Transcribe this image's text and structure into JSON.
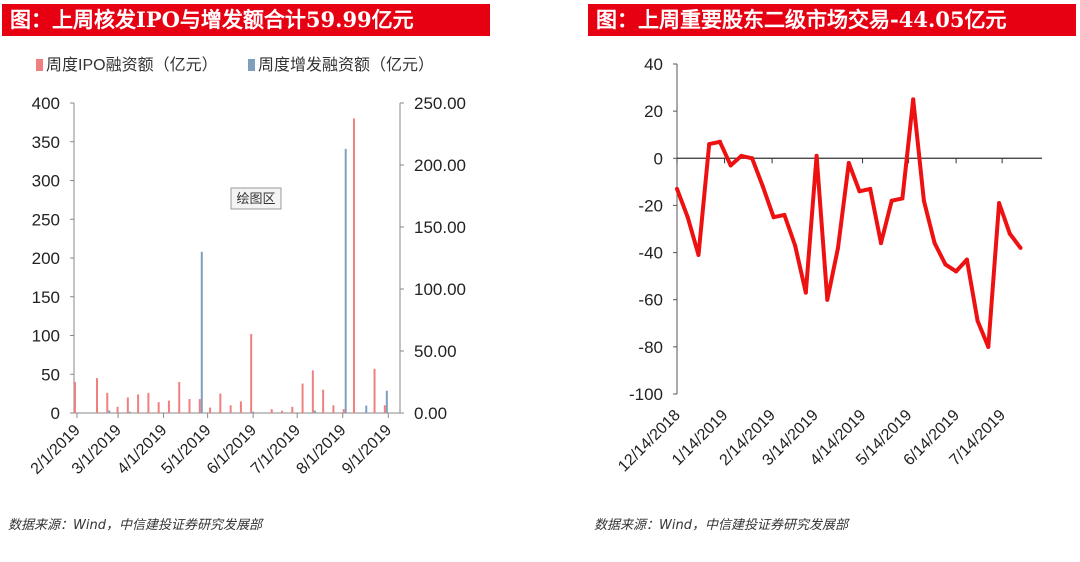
{
  "left_title": "图：上周核发IPO与增发额合计59.99亿元",
  "right_title": "图：上周重要股东二级市场交易-44.05亿元",
  "left_source": "数据来源：Wind，中信建投证券研究发展部",
  "right_source": "数据来源：Wind，中信建投证券研究发展部",
  "plot_area_label": "绘图区",
  "colors": {
    "title_bg": "#e60012",
    "ipo": "#f08080",
    "seo": "#7f9fbf",
    "line": "#ee1111"
  },
  "chart_data": [
    {
      "type": "bar",
      "title": "图：上周核发IPO与增发额合计59.99亿元",
      "legend": [
        "周度IPO融资额（亿元）",
        "周度增发融资额（亿元）"
      ],
      "legend_position": "top",
      "x_tick_labels": [
        "2/1/2019",
        "3/1/2019",
        "4/1/2019",
        "5/1/2019",
        "6/1/2019",
        "7/1/2019",
        "8/1/2019",
        "9/1/2019"
      ],
      "y_left": {
        "ticks": [
          "0",
          "50",
          "100",
          "150",
          "200",
          "250",
          "300",
          "350",
          "400"
        ],
        "lim": [
          0,
          400
        ]
      },
      "y_right": {
        "ticks": [
          "0.00",
          "50.00",
          "100.00",
          "150.00",
          "200.00",
          "250.00"
        ],
        "lim": [
          0,
          250
        ]
      },
      "x_range": [
        "2019-01-30",
        "2019-09-09"
      ],
      "series": [
        {
          "name": "周度IPO融资额（亿元）",
          "axis": "left",
          "points": [
            [
              "2019-01-31",
              40
            ],
            [
              "2019-02-15",
              45
            ],
            [
              "2019-02-22",
              26
            ],
            [
              "2019-03-01",
              8
            ],
            [
              "2019-03-08",
              20
            ],
            [
              "2019-03-15",
              24
            ],
            [
              "2019-03-22",
              26
            ],
            [
              "2019-03-29",
              14
            ],
            [
              "2019-04-05",
              16
            ],
            [
              "2019-04-12",
              40
            ],
            [
              "2019-04-19",
              18
            ],
            [
              "2019-04-26",
              18
            ],
            [
              "2019-05-03",
              7
            ],
            [
              "2019-05-10",
              25
            ],
            [
              "2019-05-17",
              10
            ],
            [
              "2019-05-24",
              15
            ],
            [
              "2019-05-31",
              102
            ],
            [
              "2019-06-14",
              5
            ],
            [
              "2019-06-21",
              3
            ],
            [
              "2019-06-28",
              8
            ],
            [
              "2019-07-05",
              38
            ],
            [
              "2019-07-12",
              55
            ],
            [
              "2019-07-19",
              30
            ],
            [
              "2019-07-26",
              10
            ],
            [
              "2019-08-02",
              5
            ],
            [
              "2019-08-09",
              380
            ],
            [
              "2019-08-23",
              57
            ],
            [
              "2019-08-30",
              10
            ]
          ]
        },
        {
          "name": "周度增发融资额（亿元）",
          "axis": "right",
          "points": [
            [
              "2019-02-22",
              2
            ],
            [
              "2019-03-08",
              1
            ],
            [
              "2019-04-26",
              130
            ],
            [
              "2019-05-31",
              1
            ],
            [
              "2019-07-12",
              2
            ],
            [
              "2019-08-02",
              213
            ],
            [
              "2019-08-16",
              6
            ],
            [
              "2019-08-30",
              18
            ]
          ]
        }
      ]
    },
    {
      "type": "line",
      "title": "图：上周重要股东二级市场交易-44.05亿元",
      "x_tick_labels": [
        "12/14/2018",
        "1/14/2019",
        "2/14/2019",
        "3/14/2019",
        "4/14/2019",
        "5/14/2019",
        "6/14/2019",
        "7/14/2019"
      ],
      "y": {
        "ticks": [
          "40",
          "20",
          "0",
          "-20",
          "-40",
          "-60",
          "-80",
          "-100"
        ],
        "lim": [
          -100,
          40
        ]
      },
      "x_range": [
        "2018-12-14",
        "2019-08-09"
      ],
      "series": [
        {
          "points": [
            [
              "2018-12-14",
              -13
            ],
            [
              "2018-12-21",
              -25
            ],
            [
              "2018-12-28",
              -41
            ],
            [
              "2019-01-04",
              6
            ],
            [
              "2019-01-11",
              7
            ],
            [
              "2019-01-18",
              -3
            ],
            [
              "2019-01-25",
              1
            ],
            [
              "2019-02-01",
              0
            ],
            [
              "2019-02-08",
              -12
            ],
            [
              "2019-02-15",
              -25
            ],
            [
              "2019-02-22",
              -24
            ],
            [
              "2019-03-01",
              -37
            ],
            [
              "2019-03-08",
              -57
            ],
            [
              "2019-03-15",
              1
            ],
            [
              "2019-03-22",
              -60
            ],
            [
              "2019-03-29",
              -38
            ],
            [
              "2019-04-05",
              -2
            ],
            [
              "2019-04-12",
              -14
            ],
            [
              "2019-04-19",
              -13
            ],
            [
              "2019-04-26",
              -36
            ],
            [
              "2019-05-03",
              -18
            ],
            [
              "2019-05-10",
              -17
            ],
            [
              "2019-05-17",
              25
            ],
            [
              "2019-05-24",
              -18
            ],
            [
              "2019-05-31",
              -36
            ],
            [
              "2019-06-07",
              -45
            ],
            [
              "2019-06-14",
              -48
            ],
            [
              "2019-06-21",
              -43
            ],
            [
              "2019-06-28",
              -69
            ],
            [
              "2019-07-05",
              -80
            ],
            [
              "2019-07-12",
              -19
            ],
            [
              "2019-07-19",
              -32
            ],
            [
              "2019-07-26",
              -38
            ]
          ]
        }
      ]
    }
  ]
}
